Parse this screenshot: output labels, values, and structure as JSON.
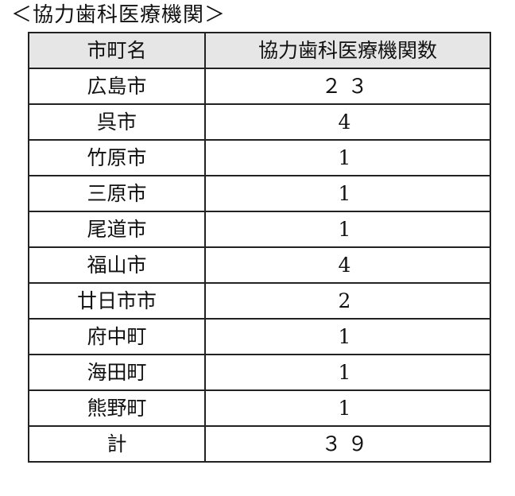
{
  "title": "＜協力歯科医療機関＞",
  "table": {
    "headers": [
      "市町名",
      "協力歯科医療機関数"
    ],
    "rows": [
      {
        "name": "広島市",
        "count": "２３"
      },
      {
        "name": "呉市",
        "count": "4"
      },
      {
        "name": "竹原市",
        "count": "1"
      },
      {
        "name": "三原市",
        "count": "1"
      },
      {
        "name": "尾道市",
        "count": "1"
      },
      {
        "name": "福山市",
        "count": "4"
      },
      {
        "name": "廿日市市",
        "count": "2"
      },
      {
        "name": "府中町",
        "count": "1"
      },
      {
        "name": "海田町",
        "count": "1"
      },
      {
        "name": "熊野町",
        "count": "1"
      },
      {
        "name": "計",
        "count": "３９"
      }
    ]
  }
}
